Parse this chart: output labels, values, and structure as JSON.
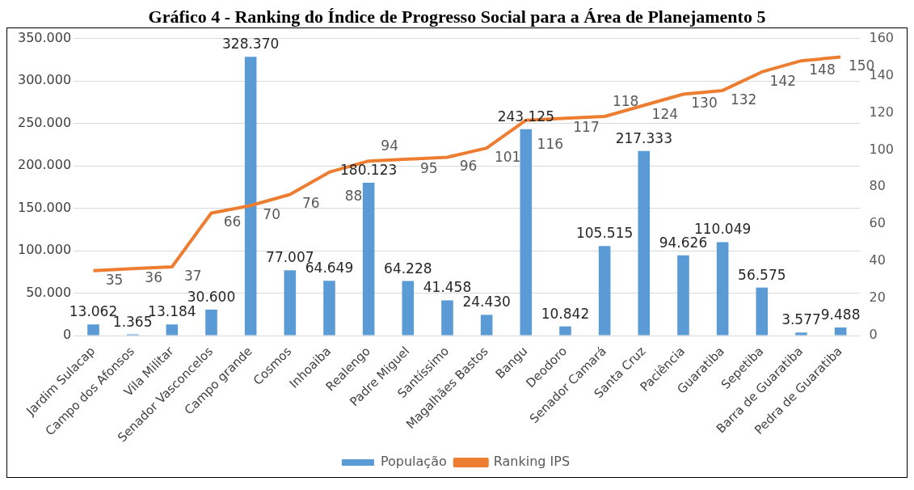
{
  "chart_data": {
    "type": "bar",
    "title": "Gráfico 4 - Ranking do Índice de Progresso Social para a Área de Planejamento 5",
    "categories": [
      "Jardim Sulacap",
      "Campo dos Afonsos",
      "Vila Militar",
      "Senador Vasconcelos",
      "Campo grande",
      "Cosmos",
      "Inhoaiba",
      "Realengo",
      "Padre Miguel",
      "Santíssimo",
      "Magalhães Bastos",
      "Bangu",
      "Deodoro",
      "Senador Camará",
      "Santa Cruz",
      "Paciência",
      "Guaratiba",
      "Sepetiba",
      "Barra de Guaratiba",
      "Pedra de Guaratiba"
    ],
    "series": [
      {
        "name": "População",
        "color": "#5b9bd5",
        "values": [
          13062,
          1365,
          13184,
          30600,
          328370,
          77007,
          64649,
          180123,
          64228,
          41458,
          24430,
          243125,
          10842,
          105515,
          217333,
          94626,
          110049,
          56575,
          3577,
          9488
        ],
        "value_labels": [
          "13.062",
          "1.365",
          "13.184",
          "30.600",
          "328.370",
          "77.007",
          "64.649",
          "180.123",
          "64.228",
          "41.458",
          "24.430",
          "243.125",
          "10.842",
          "105.515",
          "217.333",
          "94.626",
          "110.049",
          "56.575",
          "3.577",
          "9.488"
        ]
      },
      {
        "name": "Ranking IPS",
        "type": "line",
        "axis": "y2",
        "color": "#ed7d31",
        "values": [
          35,
          36,
          37,
          66,
          70,
          76,
          88,
          94,
          95,
          96,
          101,
          116,
          117,
          118,
          124,
          130,
          132,
          142,
          148,
          150
        ],
        "value_labels": [
          "35",
          "36",
          "37",
          "66",
          "70",
          "76",
          "88",
          "94",
          "95",
          "96",
          "101",
          "116",
          "117",
          "118",
          "124",
          "130",
          "132",
          "142",
          "148",
          "150"
        ]
      }
    ],
    "ylim": [
      0,
      350000
    ],
    "yticks": [
      {
        "value": 0,
        "label": "0"
      },
      {
        "value": 50000,
        "label": "50.000"
      },
      {
        "value": 100000,
        "label": "100.000"
      },
      {
        "value": 150000,
        "label": "150.000"
      },
      {
        "value": 200000,
        "label": "200.000"
      },
      {
        "value": 250000,
        "label": "250.000"
      },
      {
        "value": 300000,
        "label": "300.000"
      },
      {
        "value": 350000,
        "label": "350.000"
      }
    ],
    "y2lim": [
      0,
      160
    ],
    "y2ticks": [
      0,
      20,
      40,
      60,
      80,
      100,
      120,
      140,
      160
    ],
    "grid": "y",
    "legend": "bottom",
    "marker": "none",
    "line_style": "solid"
  }
}
